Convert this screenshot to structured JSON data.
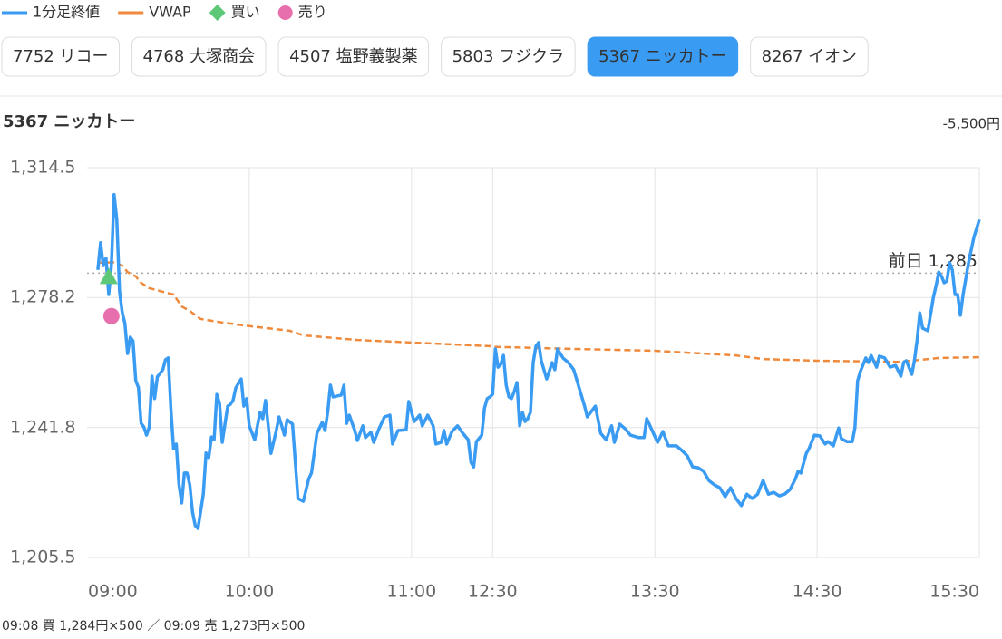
{
  "tabs": {
    "items": [
      "7752 リコー",
      "4768 大塚商会",
      "4507 塩野義製薬",
      "5803 フジクラ",
      "5367 ニッカトー",
      "8267 イオン"
    ],
    "active": 4
  },
  "pnl": "-5,500円",
  "trade_log": "09:08 買 1,284円×500 ／ 09:09 売 1,273円×500",
  "chart_data": {
    "type": "line",
    "title": "5367 ニッカトー",
    "xlim": [
      "09:00",
      "15:30"
    ],
    "xticks": [
      "09:00",
      "10:00",
      "11:00",
      "12:30",
      "13:30",
      "14:30",
      "15:30"
    ],
    "ylim": [
      1205.5,
      1314.5
    ],
    "yticks": [
      {
        "value": 1205.5,
        "label": "1,205.5"
      },
      {
        "value": 1241.8,
        "label": "1,241.8"
      },
      {
        "value": 1278.2,
        "label": "1,278.2"
      },
      {
        "value": 1314.5,
        "label": "1,314.5"
      }
    ],
    "grid": true,
    "series": [
      {
        "name": "1分足終値",
        "color": "#3a9bf3",
        "style": "solid",
        "x": [
          "09:04",
          "09:05",
          "09:06",
          "09:07",
          "09:08",
          "09:09",
          "09:10",
          "09:11",
          "09:12",
          "09:13",
          "09:14",
          "09:15",
          "09:16",
          "09:17",
          "09:18",
          "09:19",
          "09:20",
          "09:21",
          "09:22",
          "09:23",
          "09:24",
          "09:25",
          "09:26",
          "09:27",
          "09:28",
          "09:29",
          "09:30",
          "09:31",
          "09:32",
          "09:33",
          "09:34",
          "09:35",
          "09:36",
          "09:37",
          "09:38",
          "09:39",
          "09:40",
          "09:41",
          "09:42",
          "09:43",
          "09:44",
          "09:45",
          "09:46",
          "09:47",
          "09:48",
          "09:49",
          "09:50",
          "09:51",
          "09:52",
          "09:53",
          "09:54",
          "09:55",
          "09:56",
          "09:57",
          "09:58",
          "09:59",
          "10:00",
          "10:02",
          "10:03",
          "10:04",
          "10:05",
          "10:06",
          "10:07",
          "10:08",
          "10:10",
          "10:11",
          "10:12",
          "10:13",
          "10:14",
          "10:16",
          "10:18",
          "10:20",
          "10:22",
          "10:23",
          "10:25",
          "10:27",
          "10:28",
          "10:29",
          "10:30",
          "10:31",
          "10:34",
          "10:35",
          "10:36",
          "10:37",
          "10:39",
          "10:40",
          "10:42",
          "10:43",
          "10:45",
          "10:46",
          "10:48",
          "10:50",
          "10:52",
          "10:53",
          "10:55",
          "10:58",
          "10:59",
          "11:00",
          "11:01",
          "11:03",
          "11:04",
          "11:06",
          "11:08",
          "11:09",
          "11:11",
          "11:12",
          "11:13",
          "11:15",
          "11:17",
          "11:19",
          "11:21",
          "11:22",
          "11:23",
          "11:24",
          "11:26",
          "11:27",
          "11:28",
          "11:29",
          "12:30",
          "12:31",
          "12:32",
          "12:33",
          "12:34",
          "12:35",
          "12:36",
          "12:37",
          "12:38",
          "12:39",
          "12:40",
          "12:41",
          "12:42",
          "12:43",
          "12:44",
          "12:45",
          "12:46",
          "12:47",
          "12:48",
          "12:50",
          "12:52",
          "12:53",
          "12:54",
          "12:56",
          "12:58",
          "13:00",
          "13:02",
          "13:04",
          "13:05",
          "13:07",
          "13:08",
          "13:10",
          "13:12",
          "13:14",
          "13:15",
          "13:17",
          "13:19",
          "13:21",
          "13:24",
          "13:26",
          "13:27",
          "13:29",
          "13:31",
          "13:33",
          "13:35",
          "13:38",
          "13:40",
          "13:42",
          "13:44",
          "13:46",
          "13:48",
          "13:50",
          "13:52",
          "13:54",
          "13:56",
          "13:58",
          "14:00",
          "14:02",
          "14:04",
          "14:06",
          "14:08",
          "14:10",
          "14:12",
          "14:14",
          "14:16",
          "14:18",
          "14:20",
          "14:22",
          "14:23",
          "14:24",
          "14:26",
          "14:27",
          "14:29",
          "14:31",
          "14:33",
          "14:34",
          "14:36",
          "14:38",
          "14:39",
          "14:41",
          "14:43",
          "14:44",
          "14:45",
          "14:46",
          "14:48",
          "14:49",
          "14:50",
          "14:52",
          "14:53",
          "14:55",
          "14:57",
          "14:59",
          "15:01",
          "15:02",
          "15:03",
          "15:05",
          "15:06",
          "15:07",
          "15:08",
          "15:09",
          "15:11",
          "15:13",
          "15:14",
          "15:15",
          "15:16",
          "15:17",
          "15:18",
          "15:19",
          "15:20",
          "15:21",
          "15:22",
          "15:23",
          "15:24",
          "15:26",
          "15:28",
          "15:30"
        ],
        "values": [
          1285.9,
          1293.5,
          1287.1,
          1289.2,
          1279,
          1287,
          1307,
          1300,
          1280,
          1274,
          1271,
          1262.5,
          1267.1,
          1266,
          1254.9,
          1253,
          1243,
          1242,
          1239.7,
          1242,
          1256.2,
          1249.9,
          1256,
          1257,
          1258,
          1260.8,
          1261.3,
          1247.3,
          1235.9,
          1237.2,
          1225.8,
          1220.7,
          1229.1,
          1229.1,
          1225.8,
          1218.2,
          1214.4,
          1213.6,
          1218.2,
          1223.2,
          1234.7,
          1233.4,
          1239.2,
          1238.4,
          1251.1,
          1248.6,
          1237.7,
          1242.8,
          1247.8,
          1248.3,
          1249.4,
          1252.9,
          1254.2,
          1255.4,
          1247.8,
          1249.9,
          1242.3,
          1238.4,
          1242.3,
          1246.1,
          1244.3,
          1249.4,
          1242.3,
          1234.6,
          1241,
          1244.8,
          1242.3,
          1239.7,
          1244,
          1242.8,
          1222,
          1221.2,
          1227.5,
          1229.1,
          1240.2,
          1243.3,
          1241,
          1246.1,
          1253.7,
          1250.4,
          1250.9,
          1253.7,
          1243,
          1245.3,
          1241,
          1238.2,
          1242.3,
          1239,
          1240.5,
          1237.7,
          1241.5,
          1244.8,
          1245.3,
          1237.2,
          1241,
          1241.2,
          1249.1,
          1246.1,
          1243.5,
          1245.3,
          1242.3,
          1245.3,
          1242.3,
          1237.2,
          1237.7,
          1241,
          1237.2,
          1240.7,
          1242.3,
          1240.2,
          1238.4,
          1232.1,
          1230.8,
          1237.9,
          1239.7,
          1247.3,
          1249.9,
          1250.4,
          1251.1,
          1263.8,
          1258.7,
          1259.5,
          1262,
          1253.7,
          1250.4,
          1249.9,
          1251.9,
          1254.4,
          1242.3,
          1246.1,
          1243.5,
          1244.3,
          1246.1,
          1260,
          1264.6,
          1265.6,
          1260.5,
          1255.4,
          1260,
          1258,
          1263.8,
          1261.3,
          1260,
          1258,
          1252.9,
          1247.8,
          1244.8,
          1246.8,
          1247.8,
          1240.2,
          1238.4,
          1242.3,
          1237.7,
          1242.8,
          1241.5,
          1239.7,
          1239,
          1239,
          1244.3,
          1241,
          1237.7,
          1240.7,
          1236.7,
          1236.7,
          1235.4,
          1233.9,
          1230.8,
          1230.6,
          1229.6,
          1227,
          1225.8,
          1225,
          1222.5,
          1225,
          1222,
          1220,
          1223.2,
          1222,
          1223.2,
          1227,
          1223.2,
          1223.7,
          1222.7,
          1223.2,
          1224.5,
          1227.5,
          1229.6,
          1229.1,
          1234.6,
          1235.9,
          1239.7,
          1239.5,
          1237.2,
          1237.9,
          1236.7,
          1241.7,
          1238.7,
          1237.9,
          1237.9,
          1241.7,
          1254.9,
          1257.5,
          1261.3,
          1260,
          1262,
          1258.7,
          1261.8,
          1261.3,
          1258.7,
          1259.2,
          1256.2,
          1260,
          1260.5,
          1256.7,
          1260.5,
          1266.3,
          1273.9,
          1269.6,
          1268.9,
          1278.2,
          1281.5,
          1285.3,
          1284.1,
          1282.3,
          1282.8,
          1287.9,
          1285.9,
          1279,
          1279,
          1273.2,
          1279,
          1287.9,
          1295,
          1300
        ]
      },
      {
        "name": "VWAP",
        "color": "#ef8a3c",
        "style": "dashed",
        "x": [
          "09:04",
          "09:10",
          "09:13",
          "09:15",
          "09:18",
          "09:20",
          "09:23",
          "09:28",
          "09:32",
          "09:35",
          "09:38",
          "09:42",
          "09:50",
          "10:00",
          "10:15",
          "10:20",
          "10:40",
          "11:00",
          "11:29",
          "12:30",
          "13:00",
          "13:30",
          "14:00",
          "14:10",
          "14:30",
          "15:00",
          "15:05",
          "15:15",
          "15:30"
        ],
        "values": [
          1287.9,
          1288,
          1287.1,
          1285.3,
          1284.1,
          1282.3,
          1280.8,
          1279.8,
          1279,
          1275.7,
          1274.4,
          1272.2,
          1271.2,
          1270.2,
          1268.9,
          1267.6,
          1266.3,
          1265.6,
          1264.6,
          1264.4,
          1263.8,
          1263.3,
          1262,
          1261,
          1260.5,
          1260.2,
          1260.5,
          1261.3,
          1261.5
        ]
      }
    ],
    "trades": [
      {
        "name": "買い",
        "color": "#5cc878",
        "x": "09:08",
        "value": 1284,
        "marker": "triangle",
        "legend_marker": "diamond"
      },
      {
        "name": "売り",
        "color": "#e86fae",
        "x": "09:09",
        "value": 1273,
        "marker": "circle",
        "legend_marker": "circle"
      }
    ],
    "reference": {
      "value": 1285,
      "label": "前日 1,285",
      "color": "#aaaaaa"
    }
  }
}
